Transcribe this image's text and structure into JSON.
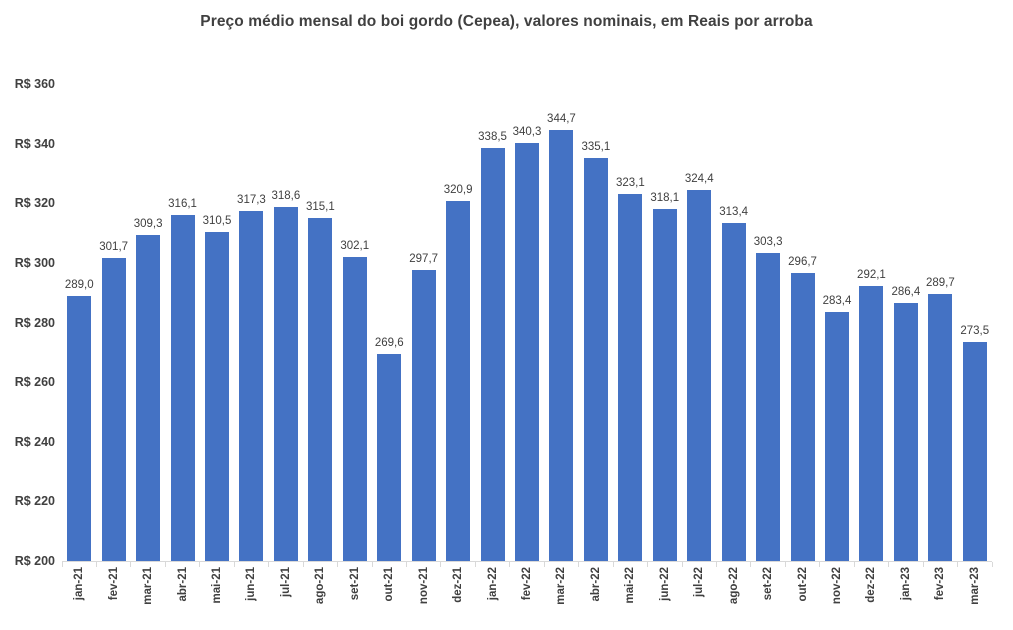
{
  "chart_data": {
    "type": "bar",
    "title": "Preço médio mensal do boi gordo (Cepea), valores nominais, em Reais por arroba",
    "categories": [
      "jan-21",
      "fev-21",
      "mar-21",
      "abr-21",
      "mai-21",
      "jun-21",
      "jul-21",
      "ago-21",
      "set-21",
      "out-21",
      "nov-21",
      "dez-21",
      "jan-22",
      "fev-22",
      "mar-22",
      "abr-22",
      "mai-22",
      "jun-22",
      "jul-22",
      "ago-22",
      "set-22",
      "out-22",
      "nov-22",
      "dez-22",
      "jan-23",
      "fev-23",
      "mar-23"
    ],
    "values": [
      289.0,
      301.7,
      309.3,
      316.1,
      310.5,
      317.3,
      318.6,
      315.1,
      302.1,
      269.6,
      297.7,
      320.9,
      338.5,
      340.3,
      344.7,
      335.1,
      323.1,
      318.1,
      324.4,
      313.4,
      303.3,
      296.7,
      283.4,
      292.1,
      286.4,
      289.7,
      273.5
    ],
    "value_labels": [
      "289,0",
      "301,7",
      "309,3",
      "316,1",
      "310,5",
      "317,3",
      "318,6",
      "315,1",
      "302,1",
      "269,6",
      "297,7",
      "320,9",
      "338,5",
      "340,3",
      "344,7",
      "335,1",
      "323,1",
      "318,1",
      "324,4",
      "313,4",
      "303,3",
      "296,7",
      "283,4",
      "292,1",
      "286,4",
      "289,7",
      "273,5"
    ],
    "xlabel": "",
    "ylabel": "",
    "ylim": [
      200,
      360
    ],
    "y_ticks": [
      {
        "label": "R$ 200",
        "value": 200
      },
      {
        "label": "R$ 220",
        "value": 220
      },
      {
        "label": "R$ 240",
        "value": 240
      },
      {
        "label": "R$ 260",
        "value": 260
      },
      {
        "label": "R$ 280",
        "value": 280
      },
      {
        "label": "R$ 300",
        "value": 300
      },
      {
        "label": "R$ 320",
        "value": 320
      },
      {
        "label": "R$ 340",
        "value": 340
      },
      {
        "label": "R$ 360",
        "value": 360
      }
    ],
    "grid": false,
    "legend": false,
    "bar_color": "#4472c4",
    "text_color": "#404040",
    "axis_line_color": "#d9d9d9"
  }
}
